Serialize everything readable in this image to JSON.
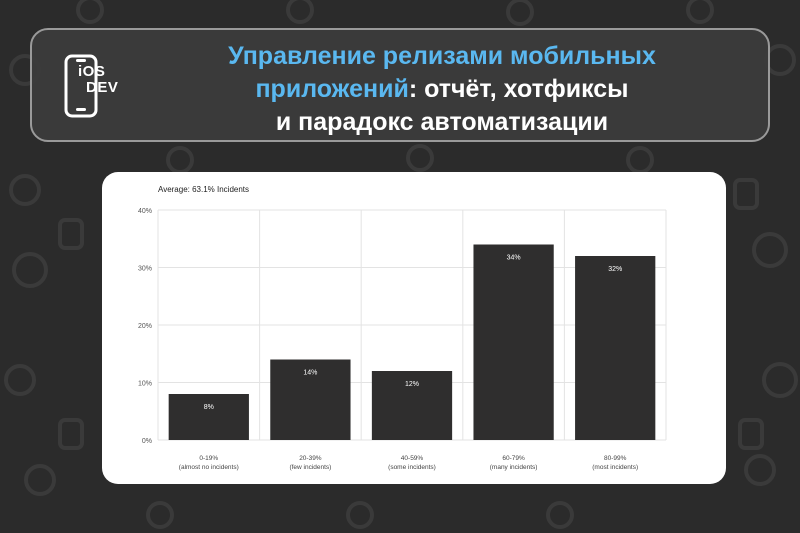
{
  "header": {
    "logo_line1": "iOS",
    "logo_line2": "DEV",
    "title_highlight_1": "Управление релизами мобильных",
    "title_highlight_2": "приложений",
    "title_rest_1": ": отчёт, хотфиксы",
    "title_line3": "и парадокс автоматизации",
    "accent_color": "#5ab8f0"
  },
  "chart_data": {
    "type": "bar",
    "title": "Average: 63.1% Incidents",
    "categories": [
      {
        "line1": "0-19%",
        "line2": "(almost no incidents)"
      },
      {
        "line1": "20-39%",
        "line2": "(few incidents)"
      },
      {
        "line1": "40-59%",
        "line2": "(some incidents)"
      },
      {
        "line1": "60-79%",
        "line2": "(many incidents)"
      },
      {
        "line1": "80-99%",
        "line2": "(most incidents)"
      }
    ],
    "values": [
      8,
      14,
      12,
      34,
      32
    ],
    "value_labels": [
      "8%",
      "14%",
      "12%",
      "34%",
      "32%"
    ],
    "yticks": [
      "0%",
      "10%",
      "20%",
      "30%",
      "40%"
    ],
    "ylim": [
      0,
      40
    ],
    "grid": true,
    "bar_color": "#2f2e2e"
  }
}
